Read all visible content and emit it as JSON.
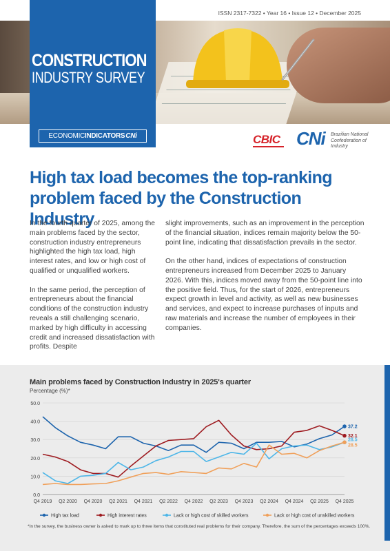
{
  "header": {
    "issn": "ISSN 2317-7322 • Year 16 • Issue 12 • December 2025",
    "title_line1": "CONSTRUCTION",
    "title_line2": "INDUSTRY SURVEY",
    "econ_prefix": "ECONOMIC",
    "econ_bold": "INDICATORS",
    "econ_brand": "CNi",
    "cbic_logo": "CBIC",
    "cni_logo": "CNi",
    "cni_sub": "Brazilian National Confederation of Industry"
  },
  "article": {
    "headline": "High tax load becomes the top-ranking problem faced by the Construction Industry",
    "col1_p1": "In the fourth quarter of 2025, among the main problems faced by the sector, construction industry entrepreneurs highlighted the high tax load, high interest rates, and low or high cost of qualified or unqualified workers.",
    "col1_p2": "In the same period, the perception of entrepreneurs about the financial conditions of the construction industry reveals a still challenging scenario, marked by high difficulty in accessing credit and increased dissatisfaction with profits. Despite",
    "col2_p1": "slight improvements, such as an improvement in the perception of the financial situation, indices remain majority below the 50-point line, indicating that dissatisfaction prevails in the sector.",
    "col2_p2": "On the other hand, indices of expectations of construction entrepreneurs increased from December 2025 to January 2026. With this, indices moved away from the 50-point line into the positive field. Thus, for the start of 2026, entrepreneurs expect growth in level and activity, as well as new businesses and services, and expect to increase purchases of inputs and raw materials and increase the number of employees in their companies."
  },
  "chart": {
    "title": "Main problems faced by Construction Industry in 2025's quarter",
    "unit": "Percentage (%)*",
    "note": "*In the survey, the business owner is asked to mark up to three items that constituted real problems for their company. Therefore, the sum of the percentages exceeds 100%."
  },
  "chart_data": {
    "type": "line",
    "title": "Main problems faced by Construction Industry in 2025's quarter",
    "ylabel": "Percentage (%)*",
    "ylim": [
      0,
      50
    ],
    "yticks": [
      "0.0",
      "10.0",
      "20.0",
      "30.0",
      "40.0",
      "50.0"
    ],
    "x": [
      "Q4 2019",
      "Q1 2020",
      "Q2 2020",
      "Q3 2020",
      "Q4 2020",
      "Q1 2021",
      "Q2 2021",
      "Q3 2021",
      "Q4 2021",
      "Q1 2022",
      "Q2 2022",
      "Q3 2022",
      "Q4 2022",
      "Q1 2023",
      "Q2 2023",
      "Q3 2023",
      "Q4 2023",
      "Q1 2024",
      "Q2 2024",
      "Q3 2024",
      "Q4 2024",
      "Q1 2025",
      "Q2 2025",
      "Q3 2025",
      "Q4 2025"
    ],
    "x_tick_labels": [
      "Q4 2019",
      "Q2 2020",
      "Q4 2020",
      "Q2 2021",
      "Q4 2021",
      "Q2 2022",
      "Q4 2022",
      "Q2 2023",
      "Q4 2023",
      "Q2 2024",
      "Q4 2024",
      "Q2 2025",
      "Q4 2025"
    ],
    "grid": true,
    "legend": "bottom",
    "series": [
      {
        "name": "High tax load",
        "color": "#1d64ad",
        "end_label": "37.2",
        "values": [
          42.5,
          36.5,
          32.0,
          28.5,
          27.0,
          25.0,
          31.5,
          31.5,
          28.0,
          26.5,
          24.0,
          27.0,
          27.0,
          23.0,
          28.5,
          28.0,
          25.0,
          28.5,
          28.5,
          29.0,
          26.0,
          27.5,
          30.5,
          32.5,
          37.2
        ]
      },
      {
        "name": "High interest rates",
        "color": "#9e1b20",
        "end_label": "32.1",
        "values": [
          22.0,
          20.5,
          18.0,
          13.5,
          11.5,
          11.5,
          9.5,
          15.5,
          21.0,
          26.5,
          29.5,
          30.0,
          30.5,
          37.0,
          40.5,
          32.5,
          26.5,
          24.5,
          25.0,
          26.5,
          34.0,
          35.0,
          37.5,
          35.0,
          32.1
        ]
      },
      {
        "name": "Lack or high cost of skilled workers",
        "color": "#4db6e8",
        "end_label": "28.5",
        "values": [
          12.0,
          7.5,
          6.0,
          10.0,
          10.5,
          11.5,
          17.5,
          13.5,
          15.0,
          18.5,
          20.5,
          23.5,
          23.5,
          18.0,
          20.5,
          23.0,
          22.0,
          28.0,
          19.5,
          25.0,
          26.5,
          27.0,
          24.5,
          26.0,
          28.5
        ]
      },
      {
        "name": "Lack or high cost of unskilled workers",
        "color": "#f0a05a",
        "end_label": "28.5",
        "values": [
          5.5,
          6.0,
          5.5,
          5.5,
          5.8,
          6.0,
          7.5,
          9.5,
          11.5,
          12.0,
          11.0,
          12.5,
          12.0,
          11.5,
          14.5,
          14.0,
          17.0,
          15.0,
          27.0,
          22.0,
          22.5,
          20.0,
          24.0,
          26.5,
          28.5
        ]
      }
    ]
  }
}
